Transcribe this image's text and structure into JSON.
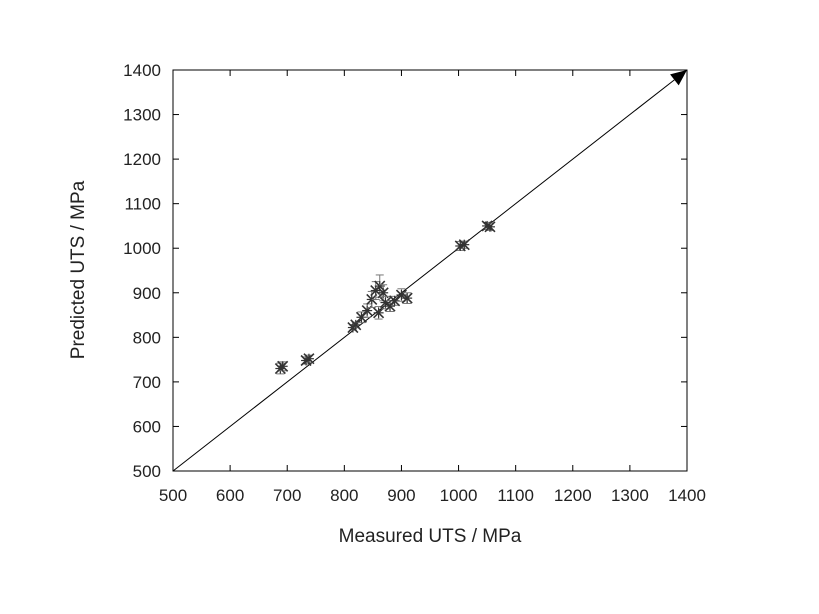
{
  "chart_data": {
    "type": "scatter",
    "title": "",
    "xlabel": "Measured UTS / MPa",
    "ylabel": "Predicted UTS / MPa",
    "xlim": [
      500,
      1400
    ],
    "ylim": [
      500,
      1400
    ],
    "xticks": [
      500,
      600,
      700,
      800,
      900,
      1000,
      1100,
      1200,
      1300,
      1400
    ],
    "yticks": [
      500,
      600,
      700,
      800,
      900,
      1000,
      1100,
      1200,
      1300,
      1400
    ],
    "grid": false,
    "legend": "none",
    "reference_line": {
      "from": [
        500,
        500
      ],
      "to": [
        1400,
        1400
      ],
      "arrowhead": true
    },
    "series": [
      {
        "marker": "x-star",
        "color": "#333333",
        "points": [
          {
            "x": 688,
            "y": 730,
            "err": 12
          },
          {
            "x": 692,
            "y": 735,
            "err": 10
          },
          {
            "x": 733,
            "y": 748,
            "err": 8
          },
          {
            "x": 738,
            "y": 752,
            "err": 8
          },
          {
            "x": 815,
            "y": 822,
            "err": 6
          },
          {
            "x": 820,
            "y": 828,
            "err": 6
          },
          {
            "x": 830,
            "y": 845,
            "err": 12
          },
          {
            "x": 840,
            "y": 860,
            "err": 15
          },
          {
            "x": 848,
            "y": 885,
            "err": 18
          },
          {
            "x": 855,
            "y": 905,
            "err": 20
          },
          {
            "x": 860,
            "y": 855,
            "err": 14
          },
          {
            "x": 862,
            "y": 915,
            "err": 25
          },
          {
            "x": 868,
            "y": 900,
            "err": 18
          },
          {
            "x": 872,
            "y": 878,
            "err": 14
          },
          {
            "x": 880,
            "y": 870,
            "err": 12
          },
          {
            "x": 888,
            "y": 882,
            "err": 10
          },
          {
            "x": 900,
            "y": 895,
            "err": 14
          },
          {
            "x": 910,
            "y": 888,
            "err": 12
          },
          {
            "x": 1003,
            "y": 1005,
            "err": 10
          },
          {
            "x": 1010,
            "y": 1008,
            "err": 8
          },
          {
            "x": 1050,
            "y": 1050,
            "err": 8
          },
          {
            "x": 1055,
            "y": 1048,
            "err": 8
          }
        ]
      }
    ]
  }
}
